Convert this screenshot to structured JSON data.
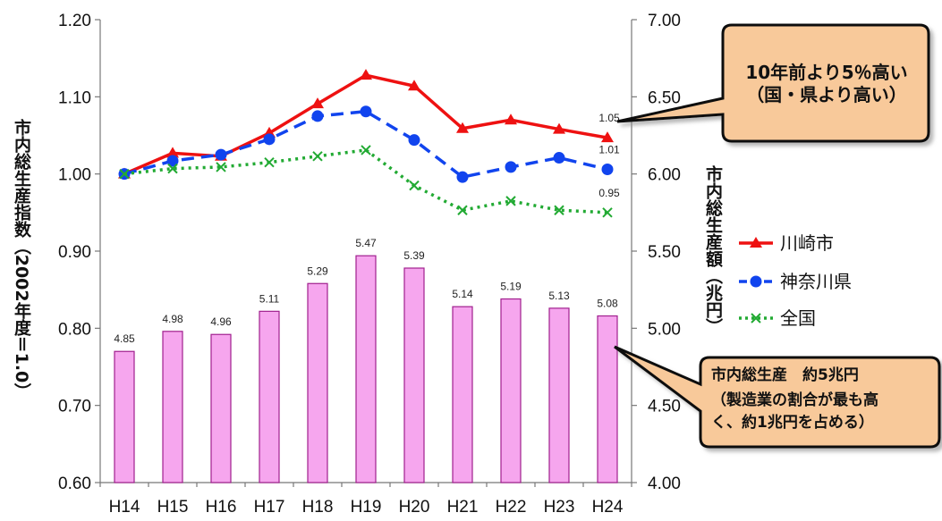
{
  "chart_data": {
    "type": "bar",
    "categories": [
      "H14",
      "H15",
      "H16",
      "H17",
      "H18",
      "H19",
      "H20",
      "H21",
      "H22",
      "H23",
      "H24"
    ],
    "bar_series": {
      "values": [
        4.85,
        4.98,
        4.96,
        5.11,
        5.29,
        5.47,
        5.39,
        5.14,
        5.19,
        5.13,
        5.08
      ],
      "value_labels": [
        "4.85",
        "4.98",
        "4.96",
        "5.11",
        "5.29",
        "5.47",
        "5.39",
        "5.14",
        "5.19",
        "5.13",
        "5.08"
      ],
      "color": "#f6a6ee",
      "axis": "right"
    },
    "line_series": [
      {
        "name": "川崎市",
        "values": [
          1.0,
          1.027,
          1.023,
          1.053,
          1.091,
          1.128,
          1.114,
          1.059,
          1.07,
          1.058,
          1.047
        ],
        "color": "#ee1111",
        "style": "solid",
        "marker": "triangle",
        "end_label": "1.05"
      },
      {
        "name": "神奈川県",
        "values": [
          1.0,
          1.017,
          1.025,
          1.045,
          1.075,
          1.081,
          1.044,
          0.996,
          1.009,
          1.021,
          1.006
        ],
        "color": "#1144ee",
        "style": "dashed",
        "marker": "circle",
        "end_label": "1.01"
      },
      {
        "name": "全国",
        "values": [
          1.0,
          1.007,
          1.009,
          1.015,
          1.023,
          1.031,
          0.985,
          0.953,
          0.965,
          0.953,
          0.95
        ],
        "color": "#22aa33",
        "style": "dotted",
        "marker": "x",
        "end_label": "0.95"
      }
    ],
    "left_axis": {
      "label": "市内総生産指数（2002年度＝1.0）",
      "range": [
        0.6,
        1.2
      ],
      "ticks": [
        "0.60",
        "0.70",
        "0.80",
        "0.90",
        "1.00",
        "1.10",
        "1.20"
      ]
    },
    "right_axis": {
      "label": "市内総生産額（兆円）",
      "range": [
        4.0,
        7.0
      ],
      "ticks": [
        "4.00",
        "4.50",
        "5.00",
        "5.50",
        "6.00",
        "6.50",
        "7.00"
      ]
    },
    "legend": {
      "placement": "right"
    },
    "grid": false
  },
  "callouts": {
    "top": {
      "line1": "10年前より5％高い",
      "line2": "（国・県より高い）"
    },
    "bottom": {
      "line1": "市内総生産　約5兆円",
      "line2": "（製造業の割合が最も高",
      "line3": "く、約1兆円を占める）"
    }
  }
}
